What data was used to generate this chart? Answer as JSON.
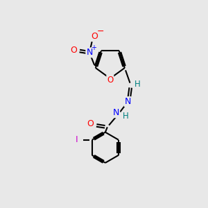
{
  "background_color": "#e8e8e8",
  "bond_color": "#000000",
  "atom_colors": {
    "O": "#ff0000",
    "N": "#0000ff",
    "I": "#cc00cc",
    "H": "#008080",
    "C": "#000000"
  }
}
